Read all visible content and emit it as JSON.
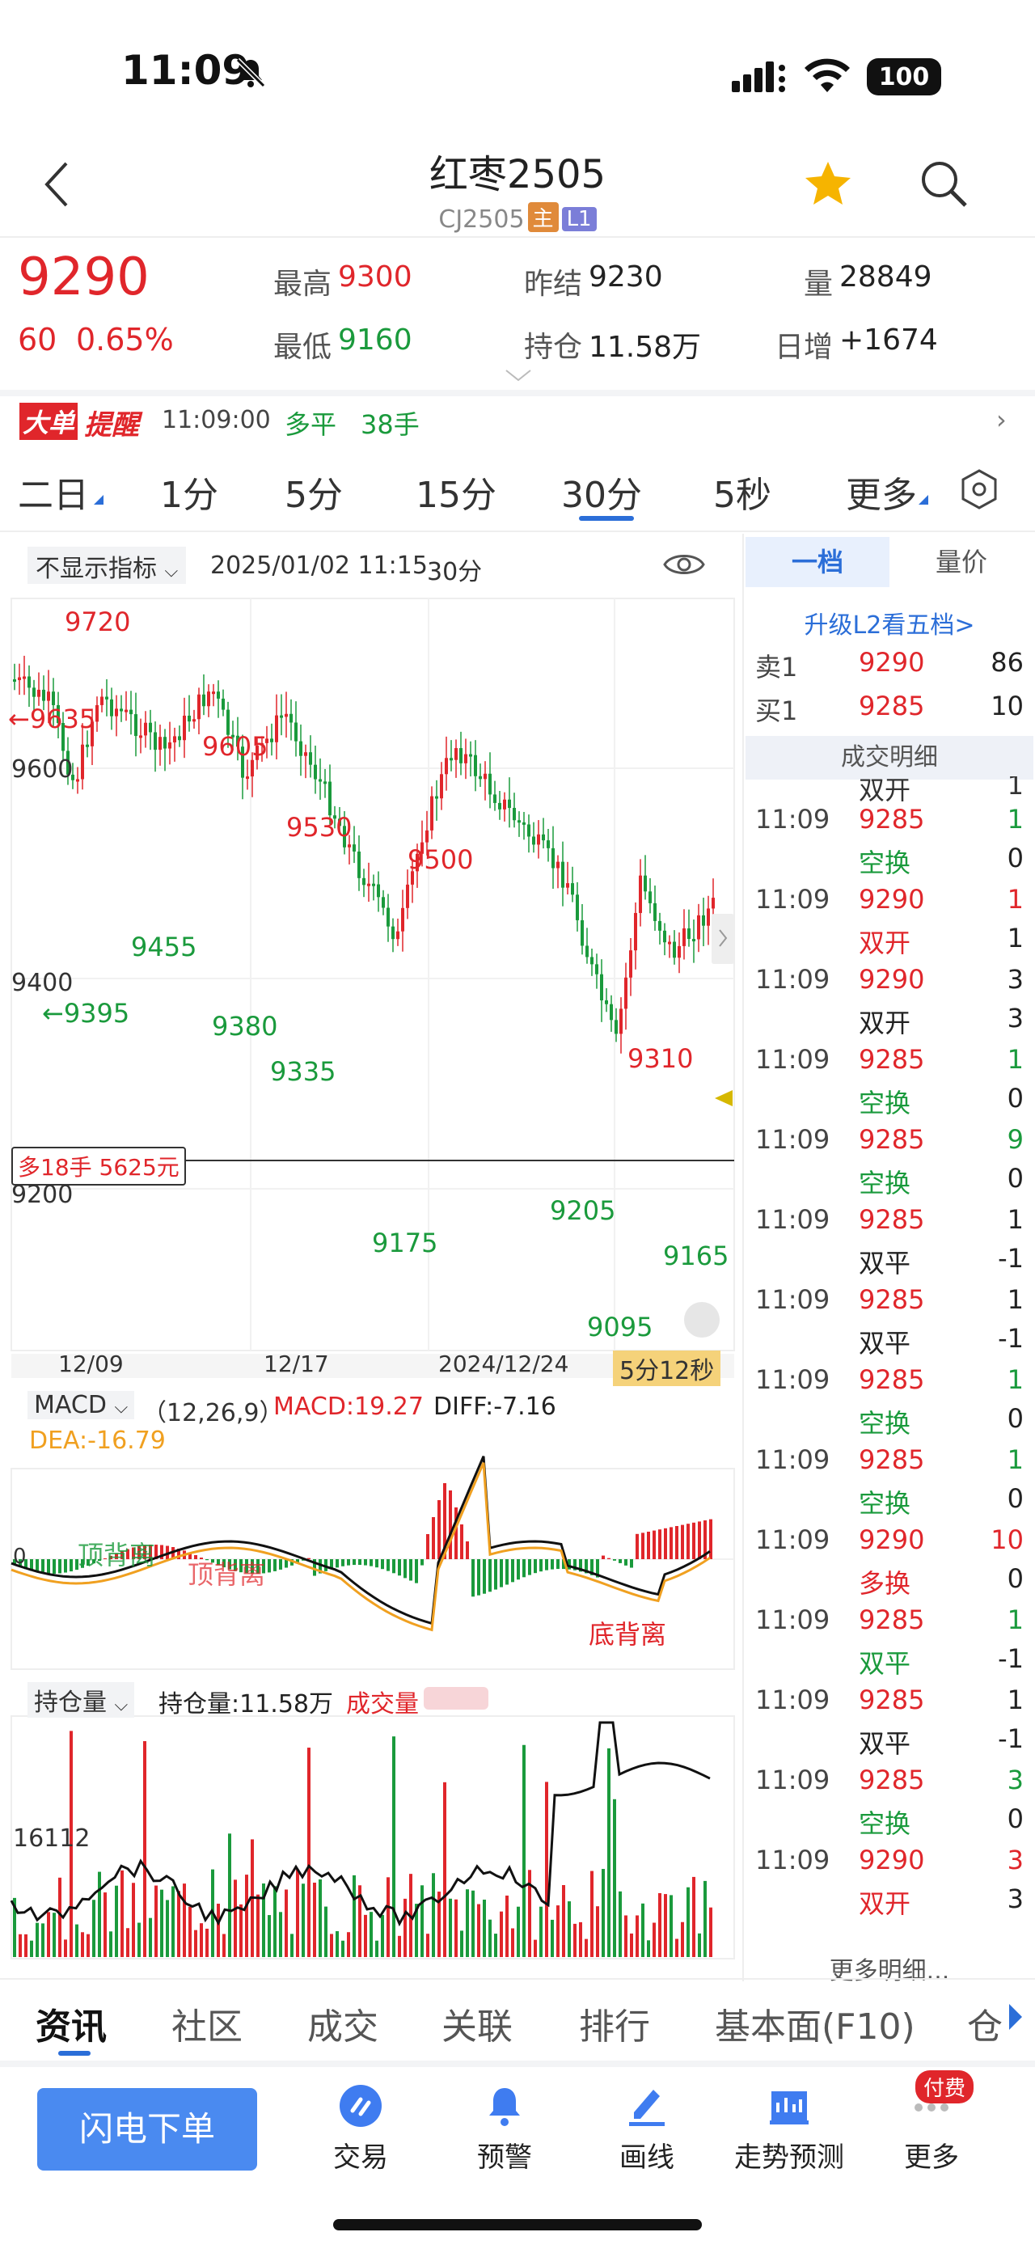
{
  "status": {
    "time": "11:09",
    "battery": "100"
  },
  "header": {
    "title": "红枣2505",
    "code": "CJ2505",
    "tag_main": "主",
    "tag_level": "L1"
  },
  "quote": {
    "price": "9290",
    "change": "60",
    "change_pct": "0.65%",
    "high_label": "最高",
    "high": "9300",
    "low_label": "最低",
    "low": "9160",
    "prev_label": "昨结",
    "prev": "9230",
    "oi_label": "持仓",
    "oi": "11.58万",
    "vol_label": "量",
    "vol": "28849",
    "inc_label": "日增",
    "inc": "+1674"
  },
  "alert": {
    "badge1": "大单",
    "badge2": "提醒",
    "time": "11:09:00",
    "type": "多平",
    "qty": "38手"
  },
  "period_tabs": [
    "二日",
    "1分",
    "5分",
    "15分",
    "30分",
    "5秒",
    "更多"
  ],
  "chart_toolbar": {
    "indicator": "不显示指标",
    "datetime": "2025/01/02 11:15",
    "period": "30分"
  },
  "price_labels": {
    "p9720": "9720",
    "p9635": "←9635",
    "p9600": "9600",
    "p9605": "9605",
    "p9530": "9530",
    "p9500": "9500",
    "p9455": "9455",
    "p9400": "9400",
    "p9395": "←9395",
    "p9380": "9380",
    "p9335": "9335",
    "p9310": "9310",
    "p9205": "9205",
    "p9200": "9200",
    "p9175": "9175",
    "p9165": "9165",
    "p9095": "9095"
  },
  "position_tag": "多18手 5625元",
  "x_dates": [
    "12/09",
    "12/17",
    "2024/12/24"
  ],
  "countdown": "5分12秒",
  "macd": {
    "selector": "MACD",
    "params": "（12,26,9）",
    "macd": "MACD:19.27",
    "diff": "DIFF:-7.16",
    "dea": "DEA:-16.79",
    "zero": "0",
    "ann1": "顶背离",
    "ann2": "顶背离",
    "ann3": "底背离"
  },
  "oi_panel": {
    "selector": "持仓量",
    "oi": "持仓量:11.58万",
    "vol": "成交量",
    "level": "16112"
  },
  "orderbook": {
    "tab1": "一档",
    "tab2": "量价",
    "upgrade": "升级L2看五档>",
    "ask_label": "卖1",
    "ask_price": "9290",
    "ask_qty": "86",
    "bid_label": "买1",
    "bid_price": "9285",
    "bid_qty": "10",
    "detail_title": "成交明细",
    "more": "更多明细...",
    "partial_type": "双开",
    "partial_val": "1"
  },
  "trades": [
    {
      "time": "11:09",
      "price": "9285",
      "qty": "1",
      "type": "空换",
      "oi": "0",
      "pc": "red",
      "qc": "green",
      "tc": "green"
    },
    {
      "time": "11:09",
      "price": "9290",
      "qty": "1",
      "type": "双开",
      "oi": "1",
      "pc": "red",
      "qc": "red",
      "tc": "red"
    },
    {
      "time": "11:09",
      "price": "9290",
      "qty": "3",
      "type": "双开",
      "oi": "3",
      "pc": "red",
      "qc": "dark",
      "tc": "dark"
    },
    {
      "time": "11:09",
      "price": "9285",
      "qty": "1",
      "type": "空换",
      "oi": "0",
      "pc": "red",
      "qc": "green",
      "tc": "green"
    },
    {
      "time": "11:09",
      "price": "9285",
      "qty": "9",
      "type": "空换",
      "oi": "0",
      "pc": "red",
      "qc": "green",
      "tc": "green"
    },
    {
      "time": "11:09",
      "price": "9285",
      "qty": "1",
      "type": "双平",
      "oi": "-1",
      "pc": "red",
      "qc": "dark",
      "tc": "dark"
    },
    {
      "time": "11:09",
      "price": "9285",
      "qty": "1",
      "type": "双平",
      "oi": "-1",
      "pc": "red",
      "qc": "dark",
      "tc": "dark"
    },
    {
      "time": "11:09",
      "price": "9285",
      "qty": "1",
      "type": "空换",
      "oi": "0",
      "pc": "red",
      "qc": "green",
      "tc": "green"
    },
    {
      "time": "11:09",
      "price": "9285",
      "qty": "1",
      "type": "空换",
      "oi": "0",
      "pc": "red",
      "qc": "green",
      "tc": "green"
    },
    {
      "time": "11:09",
      "price": "9290",
      "qty": "10",
      "type": "多换",
      "oi": "0",
      "pc": "red",
      "qc": "red",
      "tc": "red"
    },
    {
      "time": "11:09",
      "price": "9285",
      "qty": "1",
      "type": "双平",
      "oi": "-1",
      "pc": "red",
      "qc": "green",
      "tc": "green"
    },
    {
      "time": "11:09",
      "price": "9285",
      "qty": "1",
      "type": "双平",
      "oi": "-1",
      "pc": "red",
      "qc": "dark",
      "tc": "dark"
    },
    {
      "time": "11:09",
      "price": "9285",
      "qty": "3",
      "type": "空换",
      "oi": "0",
      "pc": "red",
      "qc": "green",
      "tc": "green"
    },
    {
      "time": "11:09",
      "price": "9290",
      "qty": "3",
      "type": "双开",
      "oi": "3",
      "pc": "red",
      "qc": "red",
      "tc": "red"
    }
  ],
  "bottom_tabs": [
    "资讯",
    "社区",
    "成交",
    "关联",
    "排行",
    "基本面(F10)",
    "仓"
  ],
  "bottom_nav": {
    "quick_order": "闪电下单",
    "trade": "交易",
    "alert": "预警",
    "draw": "画线",
    "forecast": "走势预测",
    "more": "更多",
    "paid": "付费"
  },
  "colors": {
    "up": "#e0262b",
    "down": "#1a9a3c",
    "accent": "#2b6ed8",
    "macd_fast": "#111111",
    "macd_slow": "#f0a020"
  }
}
